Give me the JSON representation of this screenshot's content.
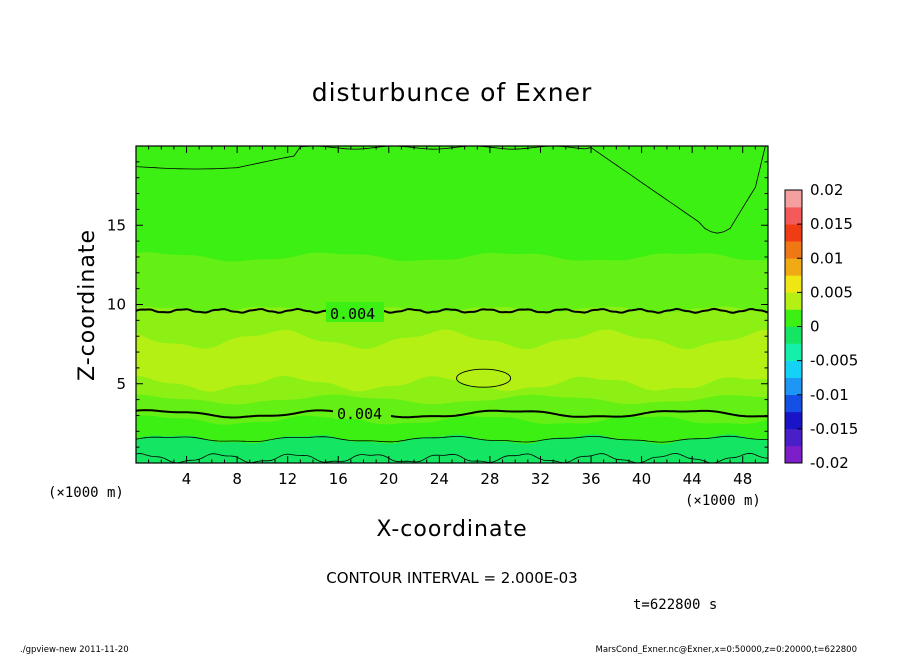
{
  "chart_data": {
    "type": "contour",
    "title": "disturbunce of Exner",
    "xlabel": "X-coordinate",
    "ylabel": "Z-coordinate",
    "x_unit_left": "(×1000 m)",
    "x_unit_right": "(×1000 m)",
    "xlim": [
      0,
      50
    ],
    "ylim": [
      0,
      20
    ],
    "x_ticks": [
      4,
      8,
      12,
      16,
      20,
      24,
      28,
      32,
      36,
      40,
      44,
      48
    ],
    "y_ticks": [
      5,
      10,
      15
    ],
    "colorbar": {
      "range": [
        -0.02,
        0.02
      ],
      "tick_labels": [
        "0.02",
        "0.015",
        "0.01",
        "0.005",
        "0",
        "-0.005",
        "-0.01",
        "-0.015",
        "-0.02"
      ],
      "colors": [
        "#7d1fc8",
        "#4a1fc8",
        "#1a14c8",
        "#1450e6",
        "#1e96f5",
        "#14d2f5",
        "#14f0aa",
        "#14e664",
        "#3cf014",
        "#b4f014",
        "#f0e614",
        "#f0aa14",
        "#f07814",
        "#f03c14",
        "#f55a5a",
        "#f5a0a0"
      ]
    },
    "field_colors": {
      "c1": "#3cf014",
      "c2": "#64f014",
      "c3": "#8cf014",
      "c4": "#b4f014",
      "c5": "#14e664"
    },
    "contour_labels": [
      {
        "text": "0.004",
        "x": 17.5,
        "z": 9.6
      },
      {
        "text": "0.004",
        "x": 17.5,
        "z": 3.0
      }
    ],
    "contour_interval": "CONTOUR INTERVAL = 2.000E-03",
    "time": "t=622800 s"
  },
  "footer": {
    "left": "./gpview-new  2011-11-20",
    "right": "MarsCond_Exner.nc@Exner,x=0:50000,z=0:20000,t=622800"
  }
}
